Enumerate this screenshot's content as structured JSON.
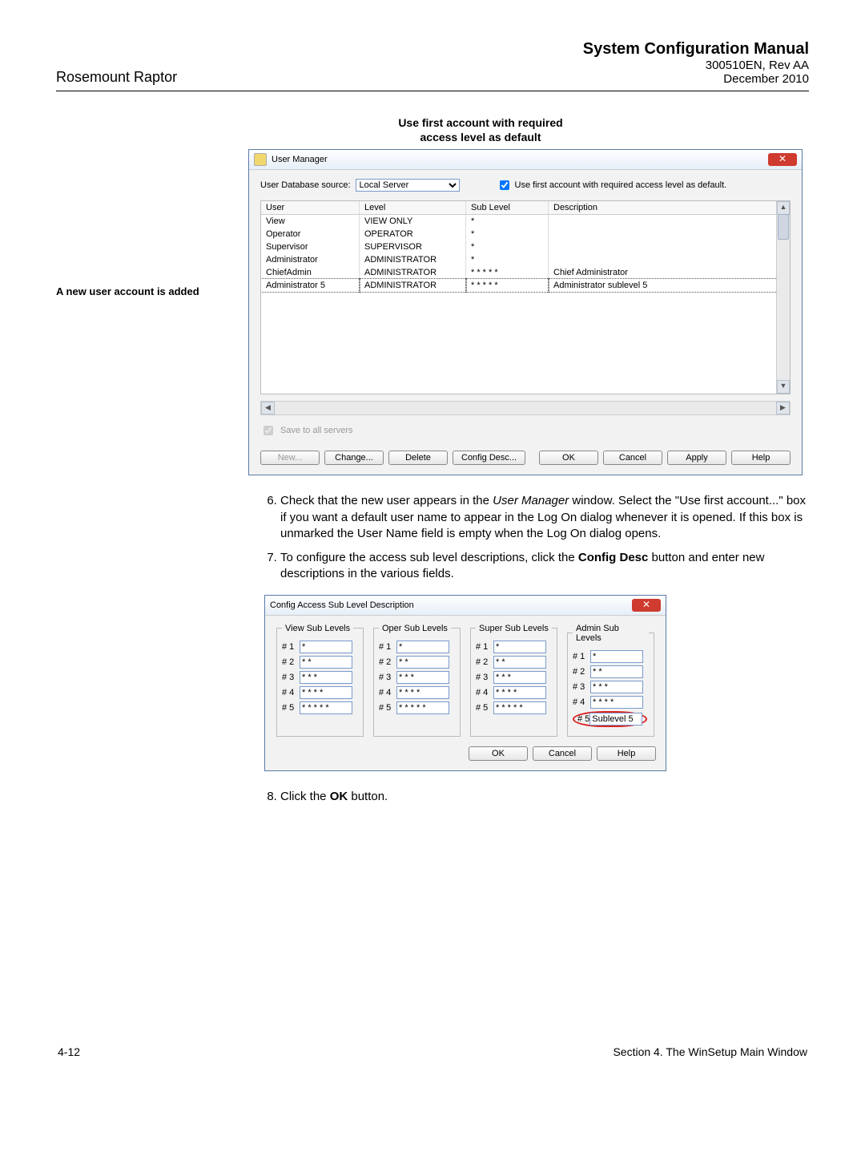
{
  "header": {
    "left": "Rosemount Raptor",
    "title": "System Configuration Manual",
    "sub1": "300510EN, Rev AA",
    "sub2": "December 2010"
  },
  "annotation_top_l1": "Use first account with required",
  "annotation_top_l2": "access level as default",
  "left_annotation": "A new user account is added",
  "user_manager": {
    "title": "User Manager",
    "source_label": "User Database source:",
    "source_value": "Local Server",
    "checkbox_label": "Use first account with required access level as default.",
    "cols": {
      "user": "User",
      "level": "Level",
      "sublevel": "Sub Level",
      "desc": "Description"
    },
    "rows": [
      {
        "user": "View",
        "level": "VIEW ONLY",
        "sub": "*",
        "desc": ""
      },
      {
        "user": "Operator",
        "level": "OPERATOR",
        "sub": "*",
        "desc": ""
      },
      {
        "user": "Supervisor",
        "level": "SUPERVISOR",
        "sub": "*",
        "desc": ""
      },
      {
        "user": "Administrator",
        "level": "ADMINISTRATOR",
        "sub": "*",
        "desc": ""
      },
      {
        "user": "ChiefAdmin",
        "level": "ADMINISTRATOR",
        "sub": "* * * * *",
        "desc": "Chief Administrator"
      },
      {
        "user": "Administrator 5",
        "level": "ADMINISTRATOR",
        "sub": "* * * * *",
        "desc": "Administrator sublevel 5"
      }
    ],
    "save_all": "Save to all servers",
    "buttons": {
      "new": "New...",
      "change": "Change...",
      "delete": "Delete",
      "config": "Config Desc...",
      "ok": "OK",
      "cancel": "Cancel",
      "apply": "Apply",
      "help": "Help"
    }
  },
  "steps": {
    "s6a": "Check that the new user appears in the ",
    "s6a_em": "User Manager",
    "s6a2": " window. Select the \"Use first account...\" box if you want a default user name to appear in the Log On dialog whenever it is opened. If this box is unmarked the User Name field is empty when the Log On dialog opens.",
    "s7a": "To configure the access sub level descriptions, click the ",
    "s7b": "Config Desc",
    "s7c": " button and enter new descriptions in the various fields.",
    "s8a": "Click the ",
    "s8b": "OK",
    "s8c": " button."
  },
  "config_desc": {
    "title": "Config Access Sub Level Description",
    "groups": [
      "View Sub Levels",
      "Oper Sub Levels",
      "Super Sub Levels",
      "Admin Sub Levels"
    ],
    "rows": [
      "# 1",
      "# 2",
      "# 3",
      "# 4",
      "# 5"
    ],
    "values_default": [
      "*",
      "* *",
      "* * *",
      "* * * *",
      "* * * * *"
    ],
    "admin5_value": "Sublevel 5",
    "buttons": {
      "ok": "OK",
      "cancel": "Cancel",
      "help": "Help"
    }
  },
  "footer": {
    "left": "4-12",
    "right": "Section 4. The WinSetup Main Window"
  }
}
